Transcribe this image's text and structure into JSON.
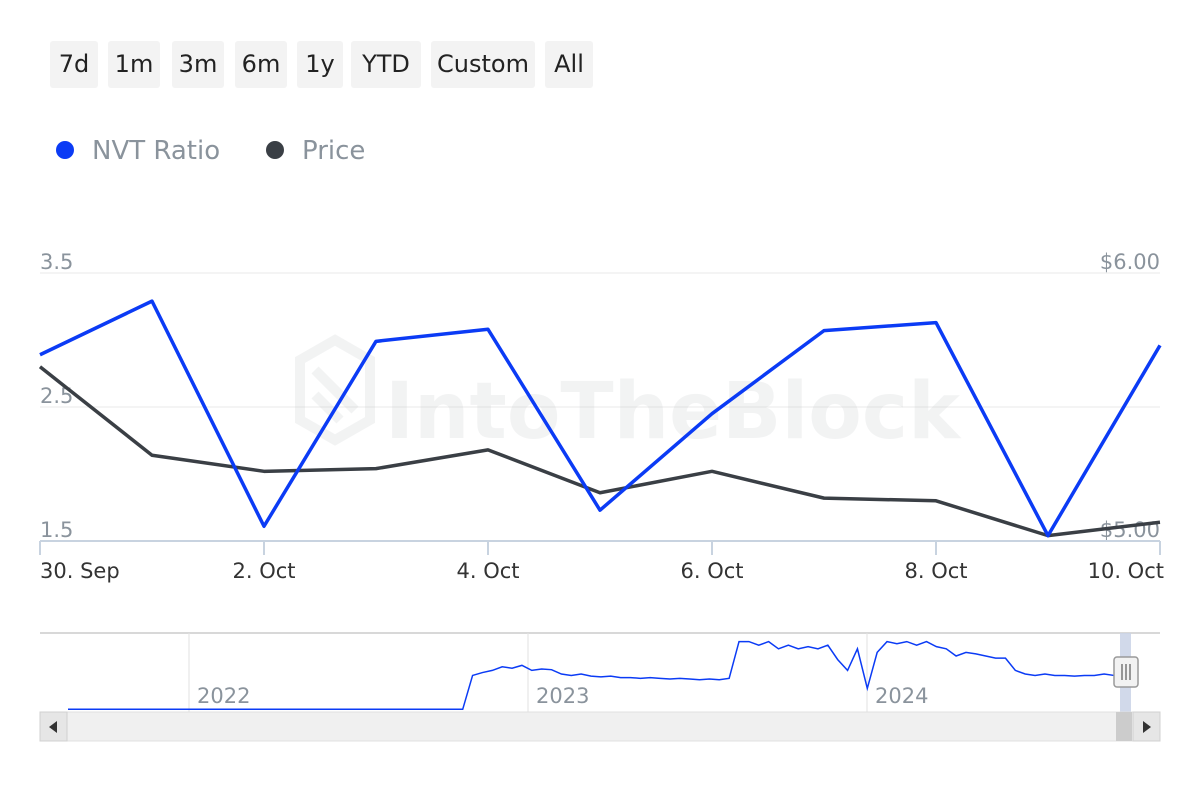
{
  "range_selector": {
    "buttons": [
      "7d",
      "1m",
      "3m",
      "6m",
      "1y",
      "YTD",
      "Custom",
      "All"
    ]
  },
  "watermark": "IntoTheBlock",
  "colors": {
    "nvt": "#0b3bf5",
    "price": "#3a3f45",
    "grid": "#eaeaea",
    "axis": "#c8d3e0",
    "navigator_handle": "#c9d2e6"
  },
  "chart_data": {
    "type": "line",
    "x": [
      "30. Sep",
      "1. Oct",
      "2. Oct",
      "3. Oct",
      "4. Oct",
      "5. Oct",
      "6. Oct",
      "7. Oct",
      "8. Oct",
      "9. Oct",
      "10. Oct"
    ],
    "x_ticks": [
      "30. Sep",
      "2. Oct",
      "4. Oct",
      "6. Oct",
      "8. Oct",
      "10. Oct"
    ],
    "series": [
      {
        "name": "NVT Ratio",
        "axis": "left",
        "values": [
          2.89,
          3.29,
          1.61,
          2.99,
          3.08,
          1.73,
          2.45,
          3.07,
          3.13,
          1.54,
          2.96
        ]
      },
      {
        "name": "Price",
        "axis": "right",
        "values": [
          5.65,
          5.32,
          5.26,
          5.27,
          5.34,
          5.18,
          5.26,
          5.16,
          5.15,
          5.02,
          5.07
        ]
      }
    ],
    "y_left": {
      "min": 1.5,
      "max": 3.5,
      "ticks": [
        "3.5",
        "2.5",
        "1.5"
      ]
    },
    "y_right": {
      "min": 5.0,
      "max": 6.0,
      "ticks": [
        "$6.00",
        "$5.00"
      ]
    },
    "grid": true,
    "legend_position": "top-left",
    "navigator": {
      "year_labels": [
        "2022",
        "2023",
        "2024"
      ],
      "values": [
        0.01,
        0.01,
        0.01,
        0.01,
        0.01,
        0.01,
        0.01,
        0.01,
        0.01,
        0.01,
        0.01,
        0.01,
        0.01,
        0.01,
        0.01,
        0.01,
        0.01,
        0.01,
        0.01,
        0.01,
        0.01,
        0.01,
        0.01,
        0.01,
        0.01,
        0.01,
        0.01,
        0.01,
        0.01,
        0.01,
        0.01,
        0.01,
        0.01,
        0.01,
        0.01,
        0.01,
        0.01,
        0.01,
        0.01,
        0.01,
        0.01,
        0.48,
        0.52,
        0.55,
        0.6,
        0.58,
        0.62,
        0.55,
        0.57,
        0.56,
        0.5,
        0.48,
        0.5,
        0.47,
        0.46,
        0.47,
        0.45,
        0.45,
        0.44,
        0.45,
        0.44,
        0.43,
        0.44,
        0.43,
        0.42,
        0.43,
        0.42,
        0.44,
        0.95,
        0.95,
        0.9,
        0.95,
        0.85,
        0.9,
        0.85,
        0.88,
        0.85,
        0.9,
        0.7,
        0.55,
        0.85,
        0.3,
        0.8,
        0.95,
        0.92,
        0.95,
        0.9,
        0.95,
        0.88,
        0.85,
        0.75,
        0.8,
        0.78,
        0.75,
        0.72,
        0.72,
        0.55,
        0.5,
        0.48,
        0.5,
        0.48,
        0.48,
        0.47,
        0.48,
        0.48,
        0.5,
        0.48
      ]
    }
  }
}
